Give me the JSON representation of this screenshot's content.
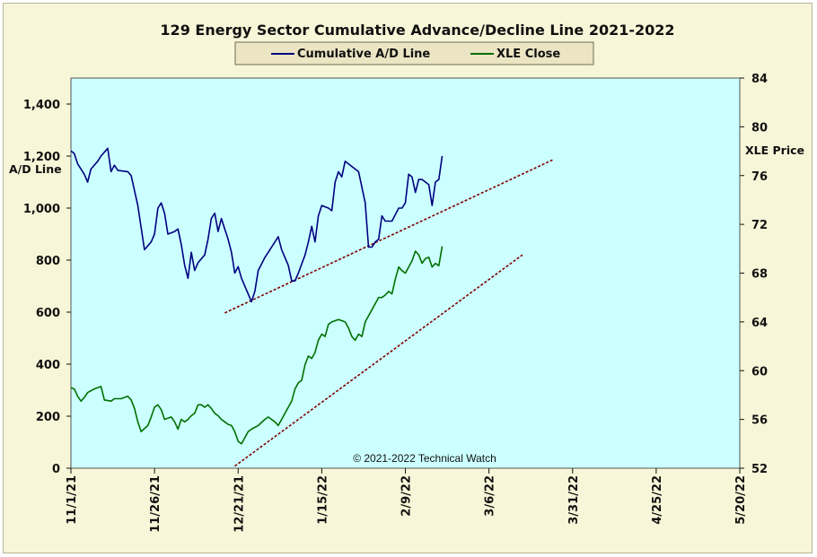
{
  "chart_data": {
    "type": "line",
    "title": "129 Energy Sector Cumulative Advance/Decline Line 2021-2022",
    "watermark": "© 2021-2022  Technical Watch",
    "background_color": "#ccffff",
    "frame_color": "#f8f6d8",
    "legend_position": "top-center",
    "x_tick_labels": [
      "11/1/21",
      "11/26/21",
      "12/21/21",
      "1/15/22",
      "2/9/22",
      "3/6/22",
      "3/31/22",
      "4/25/22",
      "5/20/22"
    ],
    "left_axis": {
      "label": "A/D Line",
      "range": [
        0,
        1500
      ],
      "ticks": [
        "0",
        "200",
        "400",
        "600",
        "800",
        "1,000",
        "1,200",
        "1,400"
      ]
    },
    "right_axis": {
      "label": "XLE Price",
      "range": [
        52,
        84
      ],
      "ticks": [
        "52",
        "56",
        "60",
        "64",
        "68",
        "72",
        "76",
        "80",
        "84"
      ]
    },
    "x_range_days": [
      0,
      200
    ],
    "series": [
      {
        "name": "Cumulative A/D Line",
        "color": "#000080",
        "axis": "left",
        "points": [
          [
            0,
            1220
          ],
          [
            1,
            1210
          ],
          [
            2,
            1170
          ],
          [
            4,
            1130
          ],
          [
            5,
            1100
          ],
          [
            6,
            1150
          ],
          [
            8,
            1180
          ],
          [
            9,
            1200
          ],
          [
            11,
            1230
          ],
          [
            12,
            1140
          ],
          [
            13,
            1165
          ],
          [
            14,
            1145
          ],
          [
            17,
            1140
          ],
          [
            18,
            1125
          ],
          [
            20,
            1010
          ],
          [
            22,
            840
          ],
          [
            24,
            870
          ],
          [
            25,
            900
          ],
          [
            26,
            1000
          ],
          [
            27,
            1020
          ],
          [
            28,
            980
          ],
          [
            29,
            900
          ],
          [
            31,
            910
          ],
          [
            32,
            920
          ],
          [
            33,
            860
          ],
          [
            34,
            780
          ],
          [
            35,
            730
          ],
          [
            36,
            830
          ],
          [
            37,
            760
          ],
          [
            38,
            790
          ],
          [
            40,
            820
          ],
          [
            41,
            880
          ],
          [
            42,
            960
          ],
          [
            43,
            980
          ],
          [
            44,
            910
          ],
          [
            45,
            960
          ],
          [
            46,
            920
          ],
          [
            47,
            880
          ],
          [
            48,
            830
          ],
          [
            49,
            750
          ],
          [
            50,
            775
          ],
          [
            51,
            730
          ],
          [
            52,
            700
          ],
          [
            53,
            670
          ],
          [
            54,
            640
          ],
          [
            55,
            680
          ],
          [
            56,
            760
          ],
          [
            58,
            810
          ],
          [
            59,
            830
          ],
          [
            62,
            890
          ],
          [
            63,
            840
          ],
          [
            65,
            780
          ],
          [
            66,
            720
          ],
          [
            67,
            720
          ],
          [
            68,
            750
          ],
          [
            70,
            820
          ],
          [
            71,
            870
          ],
          [
            72,
            930
          ],
          [
            73,
            870
          ],
          [
            74,
            970
          ],
          [
            75,
            1010
          ],
          [
            77,
            1000
          ],
          [
            78,
            990
          ],
          [
            79,
            1100
          ],
          [
            80,
            1140
          ],
          [
            81,
            1120
          ],
          [
            82,
            1180
          ],
          [
            84,
            1160
          ],
          [
            86,
            1140
          ],
          [
            88,
            1020
          ],
          [
            89,
            850
          ],
          [
            90,
            850
          ],
          [
            91,
            870
          ],
          [
            92,
            880
          ],
          [
            93,
            970
          ],
          [
            94,
            950
          ],
          [
            96,
            950
          ],
          [
            98,
            1000
          ],
          [
            99,
            1000
          ],
          [
            100,
            1020
          ],
          [
            101,
            1130
          ],
          [
            102,
            1120
          ],
          [
            103,
            1060
          ],
          [
            104,
            1110
          ],
          [
            105,
            1110
          ],
          [
            106,
            1100
          ],
          [
            107,
            1090
          ],
          [
            108,
            1010
          ],
          [
            109,
            1100
          ],
          [
            110,
            1110
          ],
          [
            111,
            1200
          ]
        ]
      },
      {
        "name": "XLE Close",
        "color": "#007000",
        "axis": "right",
        "points": [
          [
            0,
            58.6
          ],
          [
            1,
            58.5
          ],
          [
            2,
            57.9
          ],
          [
            3,
            57.5
          ],
          [
            4,
            57.8
          ],
          [
            5,
            58.2
          ],
          [
            7,
            58.5
          ],
          [
            9,
            58.7
          ],
          [
            10,
            57.6
          ],
          [
            12,
            57.5
          ],
          [
            13,
            57.7
          ],
          [
            15,
            57.7
          ],
          [
            17,
            57.9
          ],
          [
            18,
            57.6
          ],
          [
            19,
            56.9
          ],
          [
            20,
            55.8
          ],
          [
            21,
            55.0
          ],
          [
            23,
            55.5
          ],
          [
            24,
            56.2
          ],
          [
            25,
            57.0
          ],
          [
            26,
            57.2
          ],
          [
            27,
            56.8
          ],
          [
            28,
            56.0
          ],
          [
            30,
            56.2
          ],
          [
            31,
            55.8
          ],
          [
            32,
            55.2
          ],
          [
            33,
            56.0
          ],
          [
            34,
            55.8
          ],
          [
            35,
            56.0
          ],
          [
            36,
            56.3
          ],
          [
            37,
            56.5
          ],
          [
            38,
            57.2
          ],
          [
            39,
            57.2
          ],
          [
            40,
            57.0
          ],
          [
            41,
            57.2
          ],
          [
            42,
            56.9
          ],
          [
            43,
            56.5
          ],
          [
            44,
            56.3
          ],
          [
            45,
            56.0
          ],
          [
            46,
            55.8
          ],
          [
            47,
            55.6
          ],
          [
            48,
            55.5
          ],
          [
            49,
            55.0
          ],
          [
            50,
            54.2
          ],
          [
            51,
            54.0
          ],
          [
            52,
            54.5
          ],
          [
            53,
            55.0
          ],
          [
            54,
            55.2
          ],
          [
            56,
            55.5
          ],
          [
            58,
            56.0
          ],
          [
            59,
            56.2
          ],
          [
            60,
            56.0
          ],
          [
            61,
            55.8
          ],
          [
            62,
            55.5
          ],
          [
            63,
            56.0
          ],
          [
            64,
            56.5
          ],
          [
            65,
            57.0
          ],
          [
            66,
            57.5
          ],
          [
            67,
            58.5
          ],
          [
            68,
            59.0
          ],
          [
            69,
            59.2
          ],
          [
            70,
            60.5
          ],
          [
            71,
            61.2
          ],
          [
            72,
            61.0
          ],
          [
            73,
            61.5
          ],
          [
            74,
            62.5
          ],
          [
            75,
            63.0
          ],
          [
            76,
            62.8
          ],
          [
            77,
            63.8
          ],
          [
            78,
            64.0
          ],
          [
            80,
            64.2
          ],
          [
            82,
            64.0
          ],
          [
            83,
            63.5
          ],
          [
            84,
            62.8
          ],
          [
            85,
            62.5
          ],
          [
            86,
            63.0
          ],
          [
            87,
            62.8
          ],
          [
            88,
            64.0
          ],
          [
            89,
            64.5
          ],
          [
            90,
            65.0
          ],
          [
            91,
            65.5
          ],
          [
            92,
            66.0
          ],
          [
            93,
            66.0
          ],
          [
            94,
            66.2
          ],
          [
            95,
            66.5
          ],
          [
            96,
            66.3
          ],
          [
            97,
            67.5
          ],
          [
            98,
            68.5
          ],
          [
            99,
            68.2
          ],
          [
            100,
            68.0
          ],
          [
            101,
            68.5
          ],
          [
            102,
            69.0
          ],
          [
            103,
            69.8
          ],
          [
            104,
            69.5
          ],
          [
            105,
            68.8
          ],
          [
            106,
            69.2
          ],
          [
            107,
            69.3
          ],
          [
            108,
            68.5
          ],
          [
            109,
            68.8
          ],
          [
            110,
            68.6
          ],
          [
            111,
            70.2
          ]
        ]
      }
    ],
    "trendlines": [
      {
        "axis": "left",
        "color": "#800000",
        "from": [
          46,
          597
        ],
        "to": [
          144,
          1185
        ]
      },
      {
        "axis": "left",
        "color": "#800000",
        "from": [
          49,
          8
        ],
        "to": [
          135,
          820
        ]
      }
    ]
  }
}
